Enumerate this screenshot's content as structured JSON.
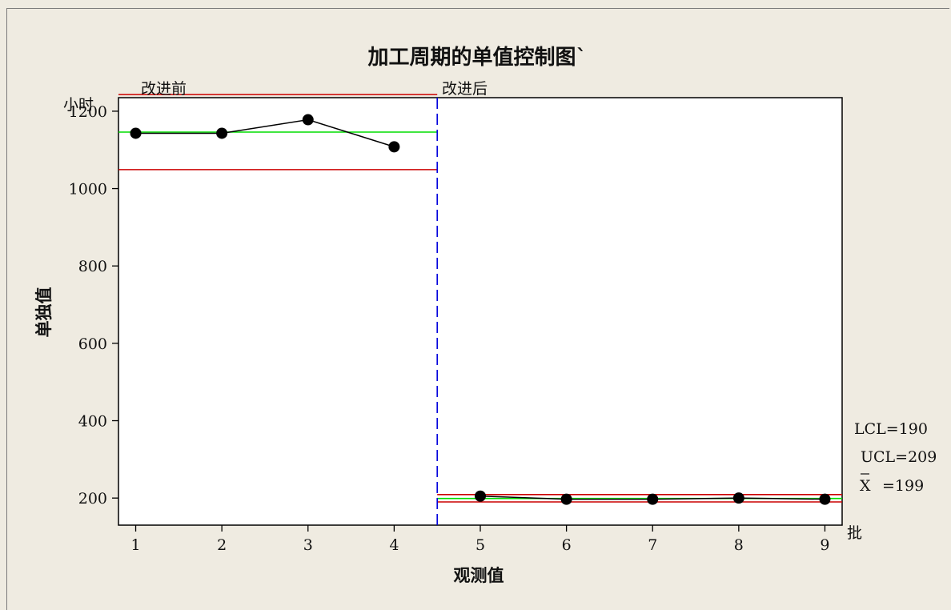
{
  "chart_data": {
    "type": "line",
    "title": "加工周期的单值控制图`",
    "xlabel": "观测值",
    "ylabel": "单独值",
    "y_unit": "小时",
    "x_unit": "批",
    "x": [
      1,
      2,
      3,
      4,
      5,
      6,
      7,
      8,
      9
    ],
    "xlim": [
      0.8,
      9.2
    ],
    "ylim": [
      130,
      1235
    ],
    "yticks": [
      200,
      400,
      600,
      800,
      1000,
      1200
    ],
    "xticks": [
      1,
      2,
      3,
      4,
      5,
      6,
      7,
      8,
      9
    ],
    "series": [
      {
        "values": [
          1143,
          1143,
          1178,
          1108,
          205,
          197,
          197,
          200,
          197
        ]
      }
    ],
    "stages": [
      {
        "label": "改进前",
        "x_start": 0.8,
        "x_end": 4.5,
        "ucl": 1243,
        "center": 1146,
        "lcl": 1049
      },
      {
        "label": "改进后",
        "x_start": 4.5,
        "x_end": 9.2,
        "ucl": 209,
        "center": 199,
        "lcl": 190
      }
    ],
    "stage_divider_x": 4.5,
    "limit_labels": {
      "lcl": "LCL=190",
      "ucl": "UCL=209",
      "xbar_symbol": "X",
      "xbar_value": "=199"
    },
    "grid": false,
    "colors": {
      "data": "#000000",
      "control_limit": "#cc0000",
      "center_line": "#00dd00",
      "divider": "#0000dd"
    }
  }
}
